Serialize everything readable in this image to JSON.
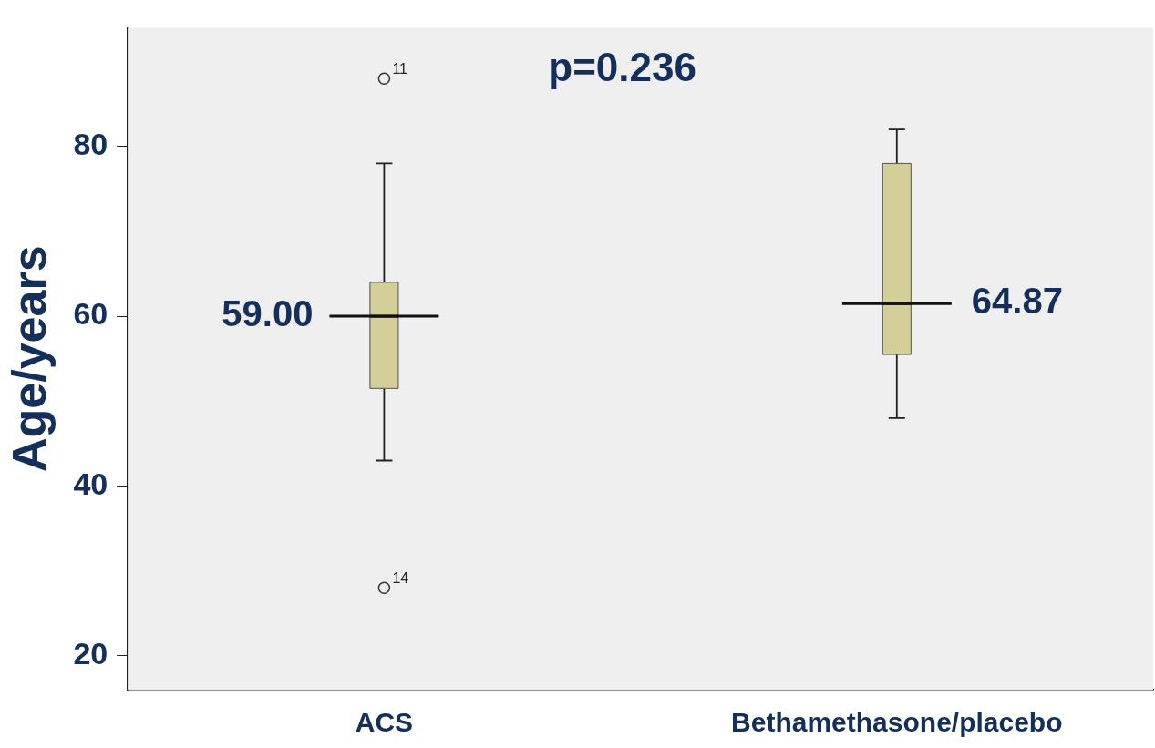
{
  "chart_data": {
    "type": "box",
    "ylabel": "Age/years",
    "categories": [
      "ACS",
      "Bethamethasone/placebo"
    ],
    "boxes": [
      {
        "low": 43,
        "q1": 51.5,
        "median": 60,
        "q3": 64,
        "high": 78,
        "outliers": [
          88,
          28
        ]
      },
      {
        "low": 48,
        "q1": 55.5,
        "median": 61.5,
        "q3": 78,
        "high": 82
      }
    ],
    "color": "#d4cf98",
    "ylim": [
      16,
      94
    ],
    "yticks": [
      20,
      40,
      60,
      80
    ],
    "grid": false,
    "legend": false,
    "annotations": [
      "p=0.236",
      {
        "text": "59.00",
        "x": "ACS",
        "y": 60
      },
      {
        "text": "64.87",
        "x": "Bethamethasone/placebo",
        "y": 61.5
      },
      "11",
      "14"
    ]
  }
}
